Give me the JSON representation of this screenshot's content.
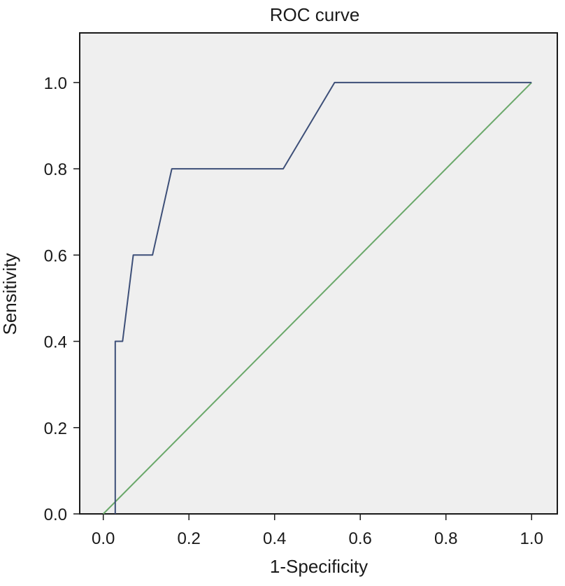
{
  "chart_data": {
    "type": "line",
    "title": "ROC curve",
    "xlabel": "1-Specificity",
    "ylabel": "Sensitivity",
    "xlim": [
      -0.055,
      1.06
    ],
    "ylim": [
      0,
      1.115
    ],
    "x_ticks": [
      "0.0",
      "0.2",
      "0.4",
      "0.6",
      "0.8",
      "1.0"
    ],
    "y_ticks": [
      "0.0",
      "0.2",
      "0.4",
      "0.6",
      "0.8",
      "1.0"
    ],
    "grid": false,
    "series": [
      {
        "color": "#3d4f78",
        "points": [
          [
            0.028,
            0.0
          ],
          [
            0.028,
            0.4
          ],
          [
            0.045,
            0.4
          ],
          [
            0.07,
            0.6
          ],
          [
            0.115,
            0.6
          ],
          [
            0.16,
            0.8
          ],
          [
            0.42,
            0.8
          ],
          [
            0.54,
            1.0
          ],
          [
            1.0,
            1.0
          ]
        ]
      },
      {
        "color": "#6aa86a",
        "points": [
          [
            0.0,
            0.0
          ],
          [
            1.0,
            1.0
          ]
        ]
      }
    ]
  },
  "colors": {
    "plot_background": "#efefef",
    "frame": "#1a1a1a"
  }
}
